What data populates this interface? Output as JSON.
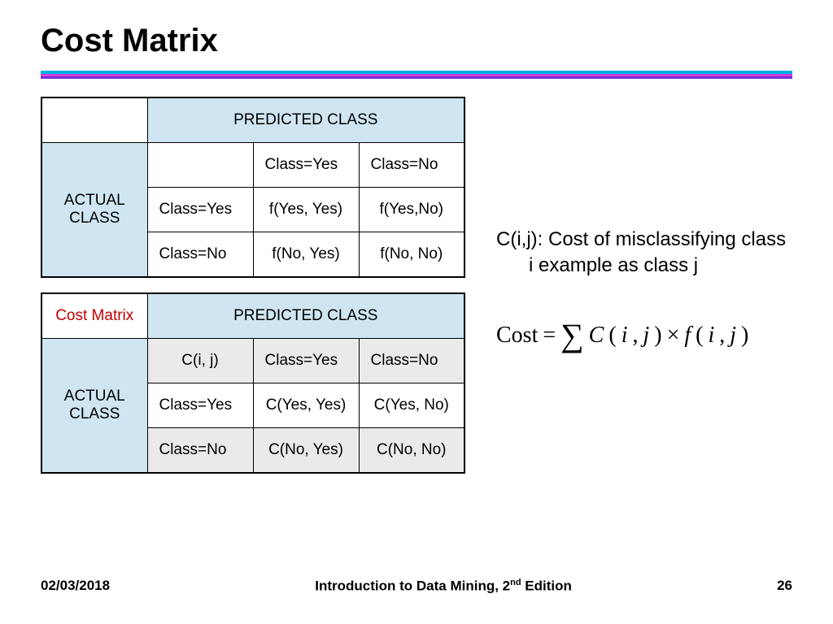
{
  "title": "Cost Matrix",
  "rule_colors": {
    "bar1": "#00aee6",
    "bar2": "#d63dd6",
    "bar3": "#7a2ed6"
  },
  "table1": {
    "header_bg": "#cfe6f2",
    "predicted_label": "PREDICTED CLASS",
    "actual_label": "ACTUAL CLASS",
    "col_yes": "Class=Yes",
    "col_no": "Class=No",
    "row_yes": "Class=Yes",
    "row_no": "Class=No",
    "v_yy": "f(Yes, Yes)",
    "v_yn": "f(Yes,No)",
    "v_ny": "f(No, Yes)",
    "v_nn": "f(No, No)"
  },
  "table2": {
    "corner_label": "Cost Matrix",
    "corner_color": "#c00000",
    "header_bg": "#cfe6f2",
    "alt_row_bg": "#eaeaea",
    "predicted_label": "PREDICTED CLASS",
    "actual_label": "ACTUAL CLASS",
    "subhead": "C(i, j)",
    "col_yes": "Class=Yes",
    "col_no": "Class=No",
    "row_yes": "Class=Yes",
    "row_no": "Class=No",
    "v_yy": "C(Yes, Yes)",
    "v_yn": "C(Yes, No)",
    "v_ny": "C(No, Yes)",
    "v_nn": "C(No, No)"
  },
  "description": "C(i,j): Cost of misclassifying class i example as class j",
  "equation": {
    "lhs": "Cost",
    "eq": "=",
    "sum": "∑",
    "c": "C",
    "lp": "(",
    "i": "i",
    "comma": ", ",
    "j": "j",
    "rp": ")",
    "times": "×",
    "f": "f"
  },
  "footer": {
    "date": "02/03/2018",
    "mid_pre": "Introduction to Data Mining, 2",
    "mid_sup": "nd",
    "mid_post": " Edition",
    "page": "26"
  }
}
